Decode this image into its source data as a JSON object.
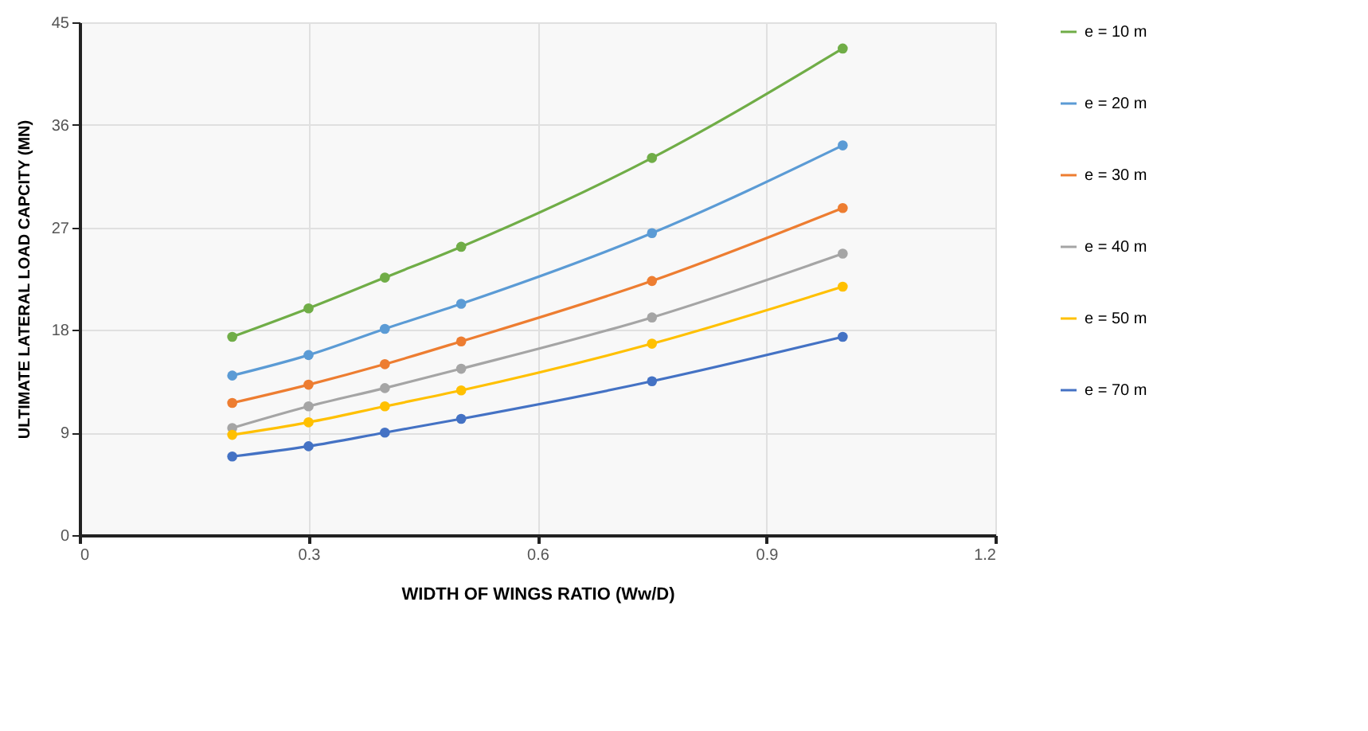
{
  "chart_data": {
    "type": "line",
    "xlabel": "WIDTH OF WINGS RATIO  (Ww/D)",
    "ylabel": "ULTIMATE LATERAL LOAD CAPCITY (MN)",
    "x": [
      0.2,
      0.3,
      0.4,
      0.5,
      0.75,
      1.0
    ],
    "series": [
      {
        "name": "e = 10 m",
        "color": "#70ad47",
        "values": [
          17.4,
          19.9,
          22.6,
          25.3,
          33.1,
          42.7
        ]
      },
      {
        "name": "e = 20 m",
        "color": "#5b9bd5",
        "values": [
          14.0,
          15.8,
          18.1,
          20.3,
          26.5,
          34.2
        ]
      },
      {
        "name": "e = 30 m",
        "color": "#ed7d31",
        "values": [
          11.6,
          13.2,
          15.0,
          17.0,
          22.3,
          28.7
        ]
      },
      {
        "name": "e = 40 m",
        "color": "#a5a5a5",
        "values": [
          9.4,
          11.3,
          12.9,
          14.6,
          19.1,
          24.7
        ]
      },
      {
        "name": "e = 50 m",
        "color": "#ffc000",
        "values": [
          8.8,
          9.9,
          11.3,
          12.7,
          16.8,
          21.8
        ]
      },
      {
        "name": "e = 70 m",
        "color": "#4472c4",
        "values": [
          6.9,
          7.8,
          9.0,
          10.2,
          13.5,
          17.4
        ]
      }
    ],
    "xlim": [
      0,
      1.2
    ],
    "ylim": [
      0,
      45
    ],
    "xticks": [
      0,
      0.3,
      0.6,
      0.9,
      1.2
    ],
    "yticks": [
      0,
      9,
      18,
      27,
      36,
      45
    ],
    "grid": true,
    "legend": "right",
    "marker": "circle",
    "line_style": "solid"
  }
}
